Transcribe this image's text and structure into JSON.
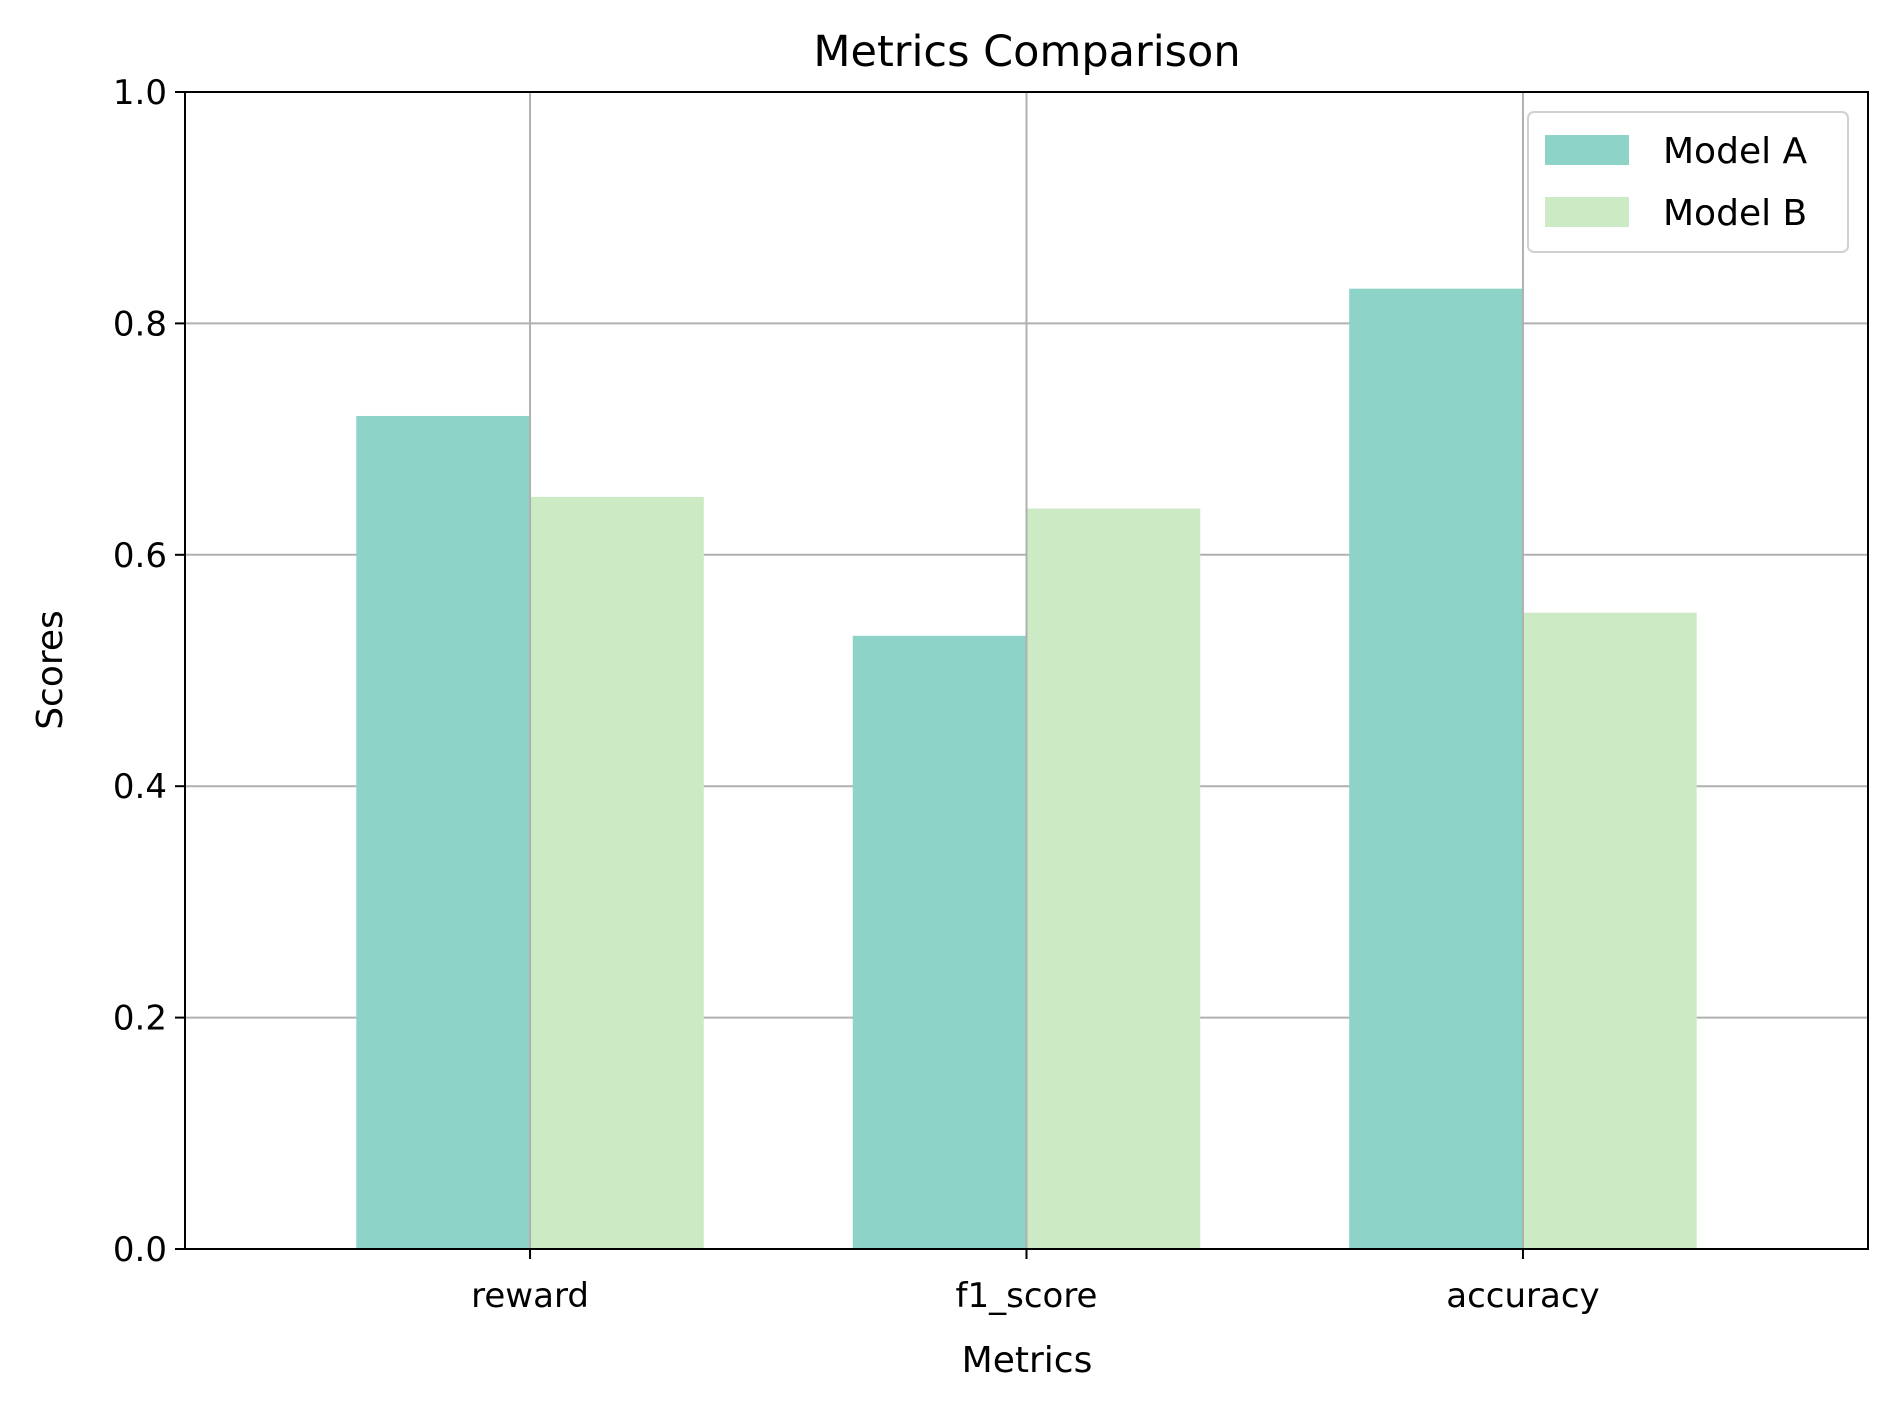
{
  "chart_data": {
    "type": "bar",
    "title": "Metrics Comparison",
    "xlabel": "Metrics",
    "ylabel": "Scores",
    "categories": [
      "reward",
      "f1_score",
      "accuracy"
    ],
    "series": [
      {
        "name": "Model A",
        "color": "#8dd3c7",
        "values": [
          0.72,
          0.53,
          0.83
        ]
      },
      {
        "name": "Model B",
        "color": "#ccebc5",
        "values": [
          0.65,
          0.64,
          0.55
        ]
      }
    ],
    "ylim": [
      0,
      1.0
    ],
    "yticks": [
      "0.0",
      "0.2",
      "0.4",
      "0.6",
      "0.8",
      "1.0"
    ],
    "grid": true,
    "legend_position": "top-right"
  }
}
